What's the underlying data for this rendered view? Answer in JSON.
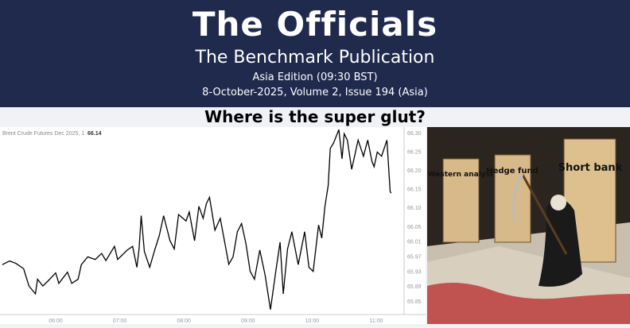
{
  "header": {
    "logo_text": "The Officials",
    "publication": "The Benchmark Publication",
    "edition": "Asia Edition (09:30 BST)",
    "issue": "8-October-2025, Volume 2, Issue 194 (Asia)",
    "background_color": "#1f2a4d"
  },
  "headline": "Where is the super glut?",
  "chart_data": {
    "type": "line",
    "title": "Brent Crude Futures Dec 2025, 1",
    "last_value": "66.14",
    "x_ticks": [
      "06:00",
      "07:00",
      "08:00",
      "09:00",
      "10:00",
      "11:00"
    ],
    "y_ticks": [
      "66.30",
      "66.25",
      "66.20",
      "66.15",
      "66.10",
      "66.05",
      "66.01",
      "65.97",
      "65.93",
      "65.89",
      "65.85"
    ],
    "ylim": [
      65.82,
      66.31
    ],
    "xlim": [
      "05:09",
      "11:15"
    ],
    "grid": false,
    "series": [
      {
        "color": "#000000",
        "x": [
          "05:10",
          "05:17",
          "05:23",
          "05:30",
          "05:35",
          "05:41",
          "05:43",
          "05:48",
          "05:53",
          "06:00",
          "06:03",
          "06:11",
          "06:15",
          "06:21",
          "06:24",
          "06:30",
          "06:37",
          "06:43",
          "06:47",
          "06:55",
          "06:58",
          "07:07",
          "07:12",
          "07:16",
          "07:18",
          "07:20",
          "07:23",
          "07:28",
          "07:33",
          "07:37",
          "07:41",
          "07:47",
          "07:51",
          "07:55",
          "08:02",
          "08:05",
          "08:10",
          "08:14",
          "08:18",
          "08:21",
          "08:24",
          "08:29",
          "08:34",
          "08:42",
          "08:46",
          "08:50",
          "08:54",
          "08:58",
          "09:02",
          "09:06",
          "09:11",
          "09:16",
          "09:21",
          "09:26",
          "09:30",
          "09:33",
          "09:37",
          "09:41",
          "09:47",
          "09:53",
          "09:57",
          "10:01",
          "10:06",
          "10:09",
          "10:12",
          "10:15",
          "10:17",
          "10:20",
          "10:25",
          "10:28",
          "10:30",
          "10:33",
          "10:37",
          "10:43",
          "10:48",
          "10:52",
          "10:56",
          "10:58",
          "11:01",
          "11:05",
          "11:10",
          "11:13",
          "11:14"
        ],
        "y": [
          65.947,
          65.957,
          65.95,
          65.936,
          65.89,
          65.869,
          65.908,
          65.89,
          65.904,
          65.925,
          65.897,
          65.927,
          65.897,
          65.908,
          65.947,
          65.968,
          65.961,
          65.977,
          65.958,
          65.996,
          65.961,
          65.986,
          65.996,
          65.94,
          65.989,
          66.078,
          65.982,
          65.94,
          65.989,
          66.025,
          66.078,
          66.011,
          65.989,
          66.081,
          66.064,
          66.088,
          66.011,
          66.103,
          66.071,
          66.11,
          66.127,
          66.039,
          66.071,
          65.948,
          65.968,
          66.035,
          66.057,
          66.004,
          65.929,
          65.908,
          65.986,
          65.919,
          65.827,
          65.929,
          66.007,
          65.869,
          65.989,
          66.035,
          65.947,
          66.035,
          65.94,
          65.929,
          66.053,
          66.018,
          66.103,
          66.159,
          66.258,
          66.272,
          66.308,
          66.23,
          66.297,
          66.28,
          66.202,
          66.28,
          66.237,
          66.28,
          66.223,
          66.209,
          66.248,
          66.237,
          66.28,
          66.142,
          66.138
        ]
      }
    ]
  },
  "cartoon": {
    "door_labels": [
      "Western analyst",
      "Hedge fund",
      "Short bank"
    ]
  }
}
